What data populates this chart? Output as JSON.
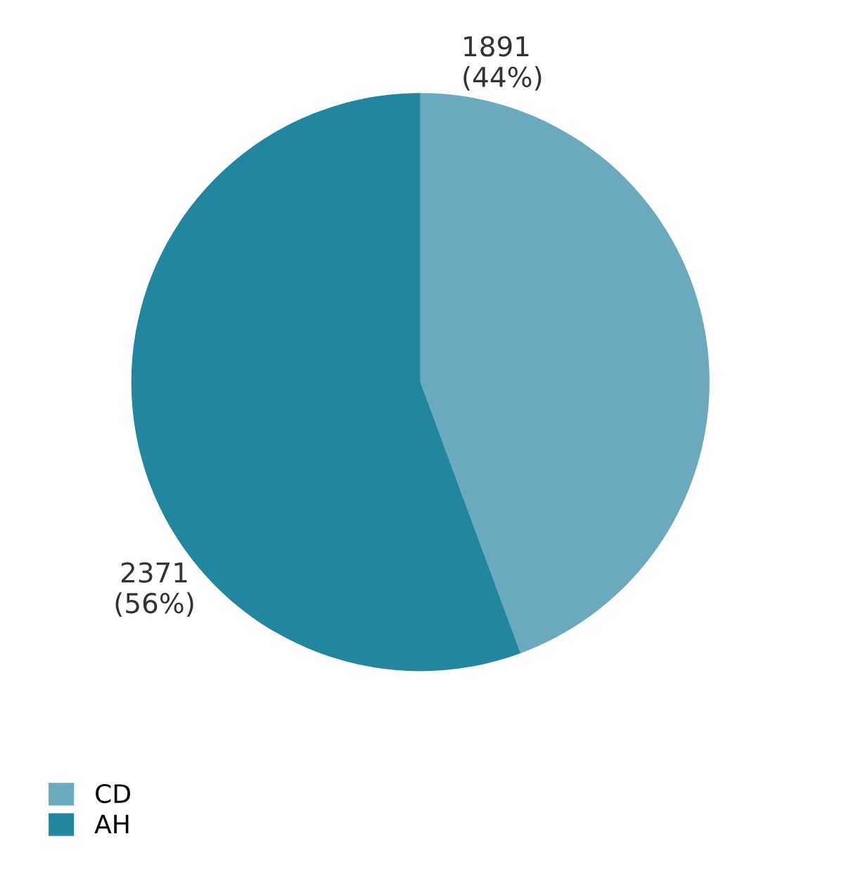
{
  "chart_data": {
    "type": "pie",
    "categories": [
      "CD",
      "AH"
    ],
    "values": [
      1891,
      2371
    ],
    "colors": [
      "#6aa9be",
      "#22869f"
    ],
    "value_labels": [
      "1891\n(44%)",
      "2371\n(56%)"
    ],
    "legend": "bottom left"
  }
}
